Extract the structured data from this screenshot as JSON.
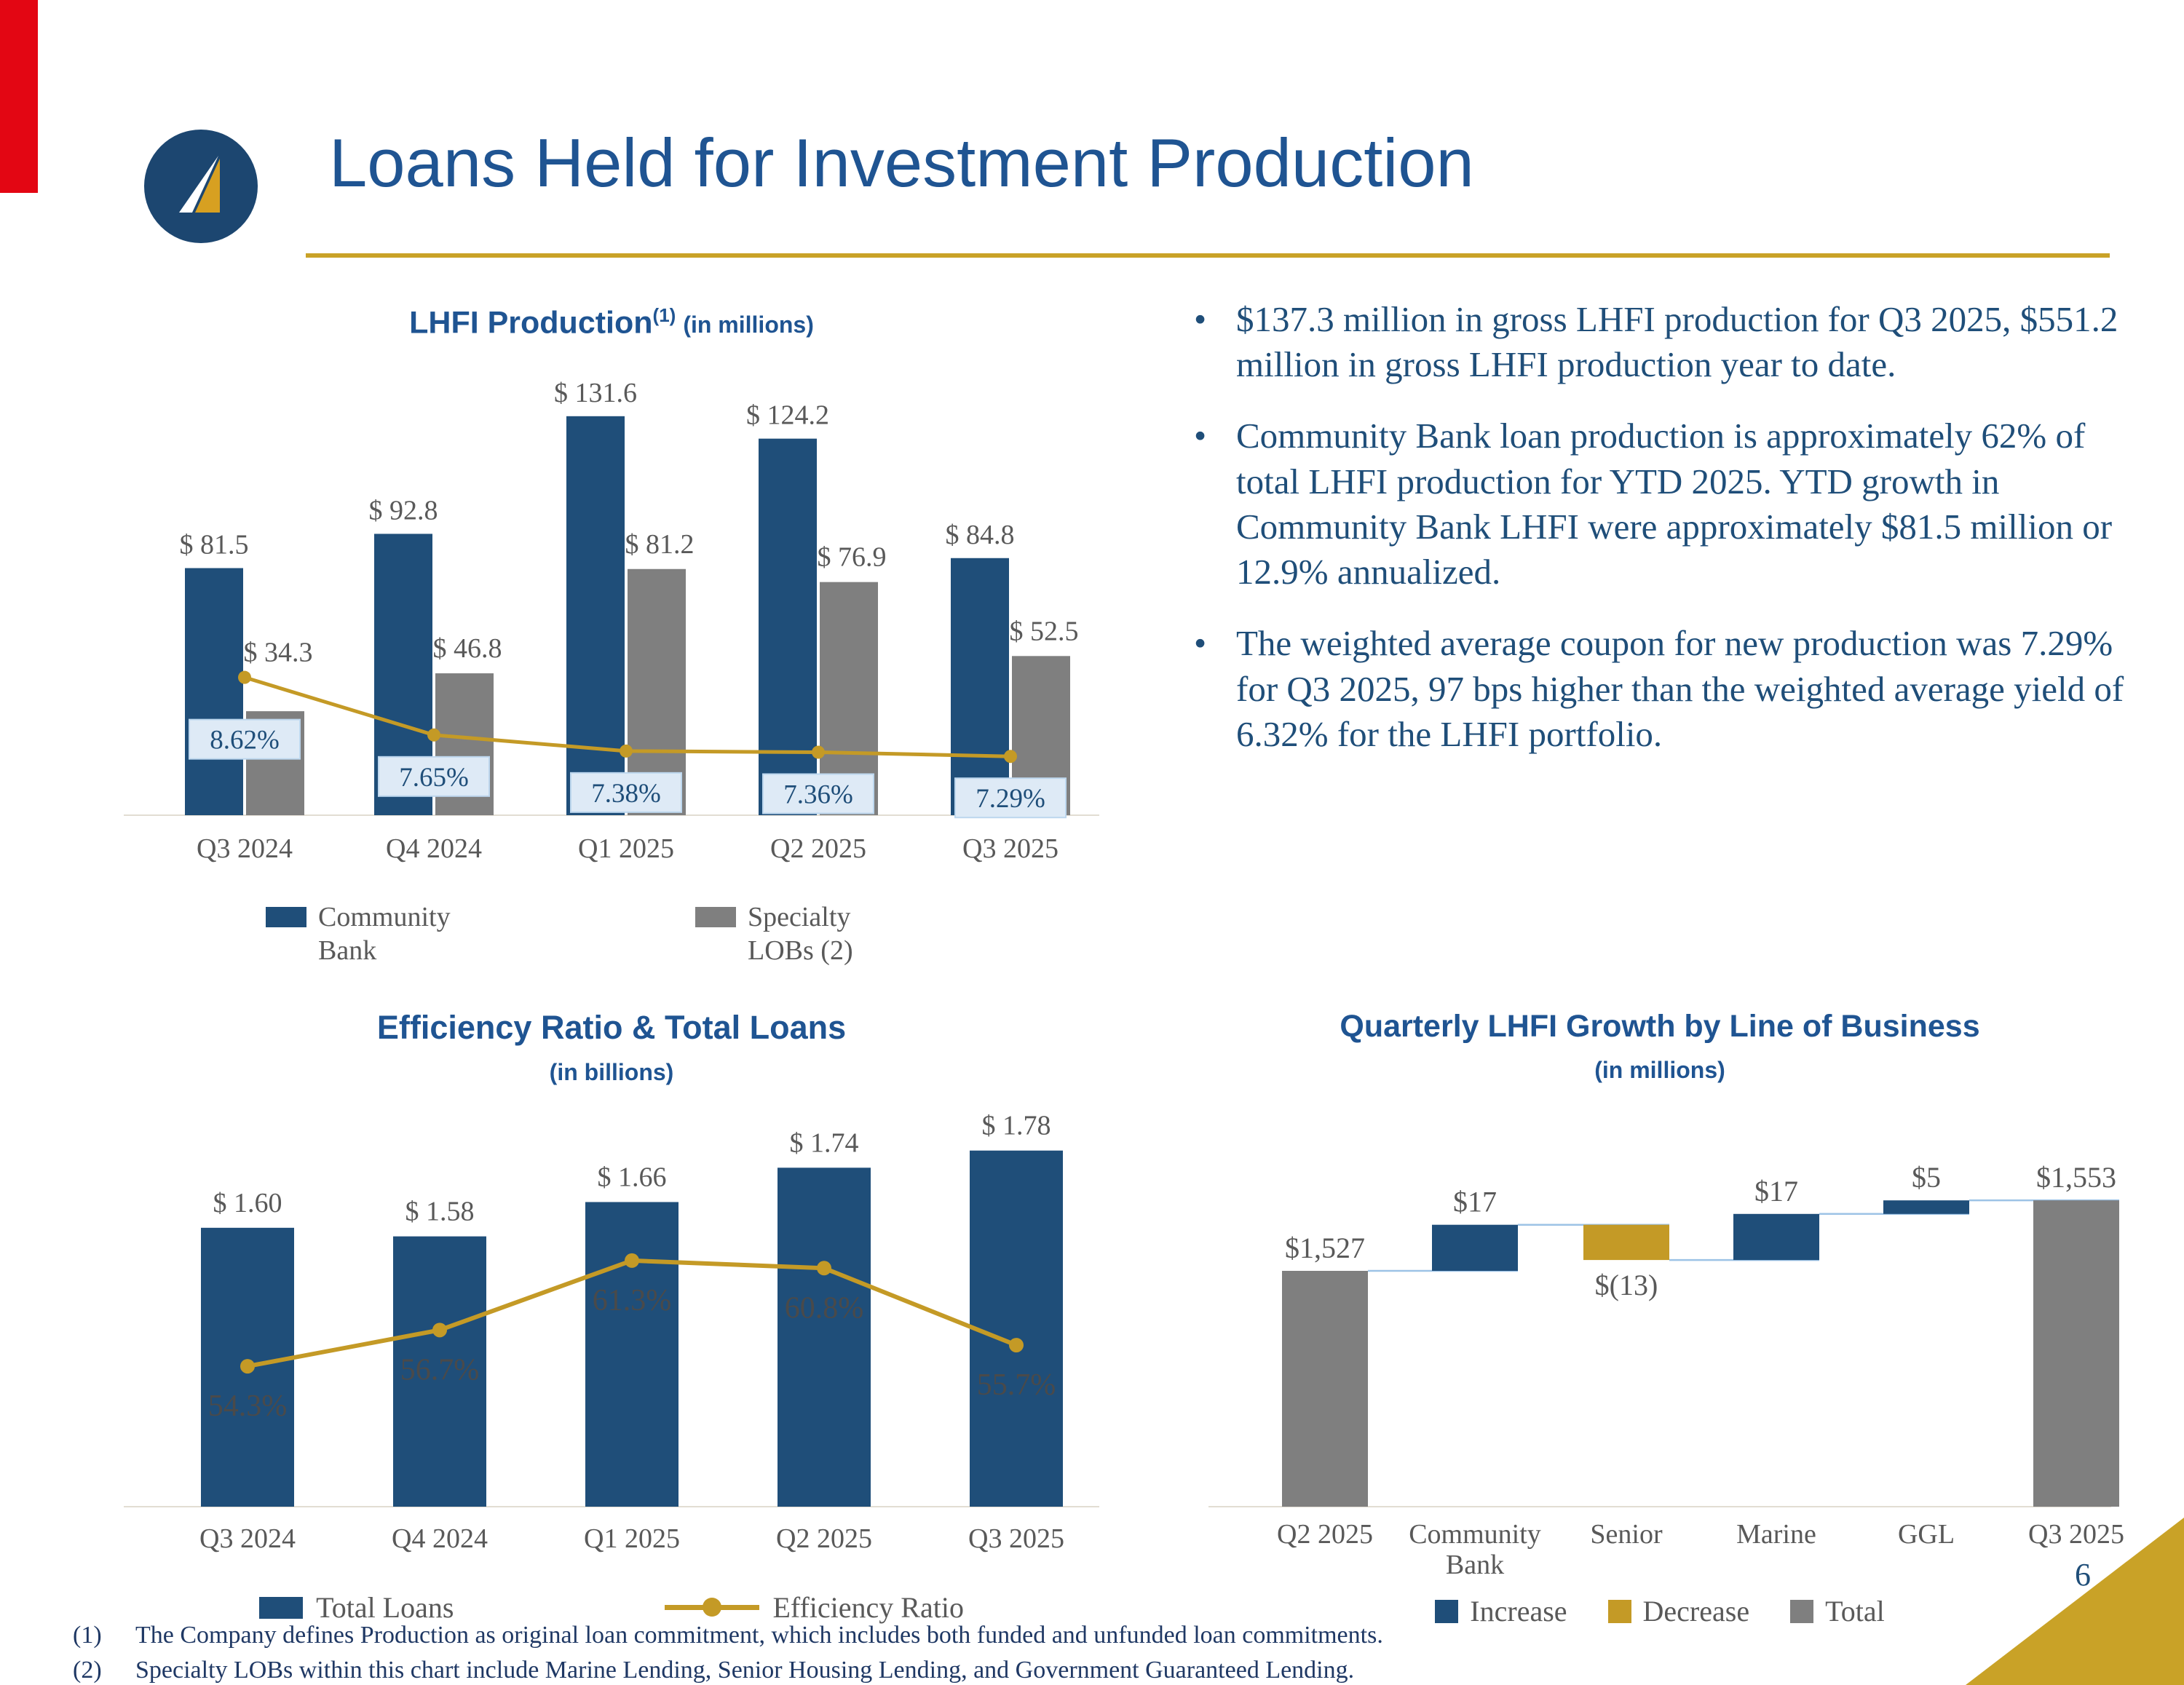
{
  "page": {
    "number": "6"
  },
  "header": {
    "title": "Loans Held for Investment Production"
  },
  "colors": {
    "title_blue": "#1F5492",
    "navy": "#1F4E79",
    "gold": "#C49A26",
    "gray": "#7F7F7F",
    "red_stripe": "#E30613",
    "label_gray": "#595959",
    "callout_box_fill": "#DEEAF6",
    "connector_blue": "#9DC3E6"
  },
  "bullets": [
    "$137.3 million in gross LHFI production for Q3 2025, $551.2 million in gross LHFI production year to date.",
    "Community Bank loan production is approximately 62% of total LHFI production for YTD 2025.  YTD growth in Community Bank LHFI were approximately $81.5 million or 12.9% annualized.",
    "The weighted average coupon for new production was 7.29% for Q3 2025, 97 bps higher than the weighted average yield of 6.32% for the LHFI portfolio."
  ],
  "footnotes": [
    {
      "marker": "(1)",
      "text": "The Company defines Production as original loan commitment, which includes both funded and unfunded loan commitments."
    },
    {
      "marker": "(2)",
      "text": "Specialty LOBs within this chart include Marine Lending, Senior Housing Lending, and Government Guaranteed Lending."
    }
  ],
  "chart_data": [
    {
      "id": "lhfi_production",
      "type": "bar",
      "title": "LHFI Production",
      "title_superscript": "(1)",
      "subtitle": "(in millions)",
      "categories": [
        "Q3 2024",
        "Q4 2024",
        "Q1 2025",
        "Q2 2025",
        "Q3 2025"
      ],
      "series": [
        {
          "name": "Community Bank",
          "color": "#1F4E79",
          "values": [
            81.5,
            92.8,
            131.6,
            124.2,
            84.8
          ],
          "labels": [
            "$ 81.5",
            "$ 92.8",
            "$ 131.6",
            "$ 124.2",
            "$ 84.8"
          ]
        },
        {
          "name": "Specialty LOBs (2)",
          "color": "#7F7F7F",
          "values": [
            34.3,
            46.8,
            81.2,
            76.9,
            52.5
          ],
          "labels": [
            "$ 34.3",
            "$ 46.8",
            "$ 81.2",
            "$ 76.9",
            "$ 52.5"
          ]
        }
      ],
      "line_series": {
        "name": "Weighted Average Coupon",
        "color": "#C49A26",
        "values": [
          8.62,
          7.65,
          7.38,
          7.36,
          7.29
        ],
        "labels": [
          "8.62%",
          "7.65%",
          "7.38%",
          "7.36%",
          "7.29%"
        ]
      },
      "ylim": [
        0,
        145
      ],
      "y2lim": [
        6.3,
        13.7
      ],
      "legend": [
        {
          "label": "Community Bank",
          "color": "#1F4E79"
        },
        {
          "label": "Specialty LOBs (2)",
          "color": "#7F7F7F"
        }
      ]
    },
    {
      "id": "efficiency_ratio_total_loans",
      "type": "bar-line",
      "title": "Efficiency Ratio & Total Loans",
      "subtitle": "(in billions)",
      "categories": [
        "Q3 2024",
        "Q4 2024",
        "Q1 2025",
        "Q2 2025",
        "Q3 2025"
      ],
      "bar_series": {
        "name": "Total Loans",
        "color": "#1F4E79",
        "values": [
          1.6,
          1.58,
          1.66,
          1.74,
          1.78
        ],
        "labels": [
          "$ 1.60",
          "$ 1.58",
          "$ 1.66",
          "$ 1.74",
          "$ 1.78"
        ]
      },
      "line_series": {
        "name": "Efficiency Ratio",
        "color": "#C49A26",
        "values": [
          54.3,
          56.7,
          61.3,
          60.8,
          55.7
        ],
        "labels": [
          "54.3%",
          "56.7%",
          "61.3%",
          "60.8%",
          "55.7%"
        ]
      },
      "ylim": [
        0.95,
        1.9
      ],
      "y2lim": [
        45,
        72
      ],
      "legend": [
        {
          "label": "Total Loans",
          "type": "swatch",
          "color": "#1F4E79"
        },
        {
          "label": "Efficiency Ratio",
          "type": "line",
          "color": "#C49A26"
        }
      ]
    },
    {
      "id": "quarterly_lhfi_growth_waterfall",
      "type": "waterfall",
      "title": "Quarterly LHFI Growth by Line of Business",
      "subtitle": "(in millions)",
      "categories": [
        "Q2 2025",
        "Community Bank",
        "Senior",
        "Marine",
        "GGL",
        "Q3 2025"
      ],
      "categories_lines": [
        [
          "Q2 2025"
        ],
        [
          "Community",
          "Bank"
        ],
        [
          "Senior"
        ],
        [
          "Marine"
        ],
        [
          "GGL"
        ],
        [
          "Q3 2025"
        ]
      ],
      "steps": [
        {
          "label": "Q2 2025",
          "kind": "total",
          "value": 1527,
          "text": "$1,527"
        },
        {
          "label": "Community Bank",
          "kind": "increase",
          "value": 17,
          "text": "$17"
        },
        {
          "label": "Senior",
          "kind": "decrease",
          "value": -13,
          "text": "$(13)"
        },
        {
          "label": "Marine",
          "kind": "increase",
          "value": 17,
          "text": "$17"
        },
        {
          "label": "GGL",
          "kind": "increase",
          "value": 5,
          "text": "$5"
        },
        {
          "label": "Q3 2025",
          "kind": "total",
          "value": 1553,
          "text": "$1,553"
        }
      ],
      "kind_colors": {
        "total": "#7F7F7F",
        "increase": "#1F4E79",
        "decrease": "#C49A26"
      },
      "ylim": [
        1440,
        1585
      ],
      "legend": [
        {
          "label": "Increase",
          "color": "#1F4E79"
        },
        {
          "label": "Decrease",
          "color": "#C49A26"
        },
        {
          "label": "Total",
          "color": "#7F7F7F"
        }
      ]
    }
  ]
}
